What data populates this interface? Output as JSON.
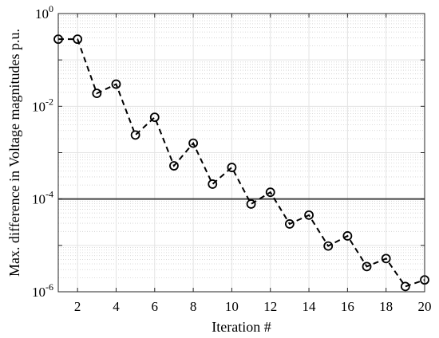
{
  "chart_data": {
    "type": "line",
    "xlabel": "Iteration #",
    "ylabel": "Max. difference in Voltage magnitudes p.u.",
    "x": [
      1,
      2,
      3,
      4,
      5,
      6,
      7,
      8,
      9,
      10,
      11,
      12,
      13,
      14,
      15,
      16,
      17,
      18,
      19,
      20
    ],
    "series": [
      {
        "values": [
          0.28,
          0.28,
          0.019,
          0.03,
          0.0024,
          0.0058,
          0.00052,
          0.0016,
          0.00021,
          0.00048,
          7.8e-05,
          0.00014,
          2.9e-05,
          4.5e-05,
          9.7e-06,
          1.6e-05,
          3.5e-06,
          5.2e-06,
          1.3e-06,
          1.8e-06
        ],
        "line_style": "dashed",
        "marker": "open-circle",
        "color": "#000000"
      }
    ],
    "threshold": {
      "y": 0.0001,
      "color": "#444444"
    },
    "xlim": [
      1,
      20
    ],
    "ylim": [
      1e-06,
      1
    ],
    "yscale": "log",
    "xticks": [
      "2",
      "4",
      "6",
      "8",
      "10",
      "12",
      "14",
      "16",
      "18",
      "20"
    ],
    "yticks": [
      {
        "value": 1,
        "base": "10",
        "exp": "0"
      },
      {
        "value": 0.01,
        "base": "10",
        "exp": "-2"
      },
      {
        "value": 0.0001,
        "base": "10",
        "exp": "-4"
      },
      {
        "value": 1e-06,
        "base": "10",
        "exp": "-6"
      }
    ],
    "grid": true,
    "minor_grid": true
  }
}
